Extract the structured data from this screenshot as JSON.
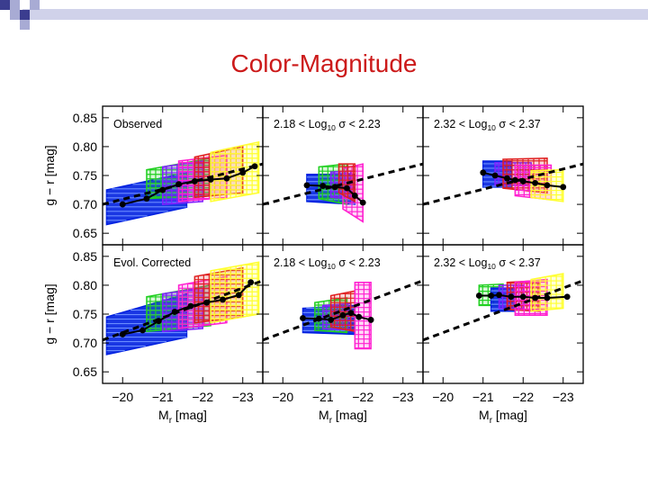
{
  "slide": {
    "title": "Color-Magnitude"
  },
  "colors": {
    "title": "#cc1a1a",
    "accent_square_1": "#3b3d8f",
    "accent_square_2": "#a8abd4",
    "bar_light": "#d0d2ea",
    "ridge_line": "#000000",
    "band_blue": "#0020e0",
    "band_green": "#20d020",
    "band_purple": "#8020ff",
    "band_magenta": "#ff20d0",
    "band_red": "#e02020",
    "band_yellow": "#ffff30"
  },
  "chart_data": {
    "type": "scatter",
    "layout": "2 rows x 3 columns of panels sharing axes",
    "ylabel": "g − r [mag]",
    "xlabel": "M_r [mag]",
    "xlim": [
      -19.5,
      -23.5
    ],
    "ylim": [
      0.63,
      0.87
    ],
    "x_ticks": [
      -20,
      -21,
      -22,
      -23
    ],
    "x_tick_labels": [
      "−20",
      "−21",
      "−22",
      "−23"
    ],
    "y_ticks": [
      0.65,
      0.7,
      0.75,
      0.8,
      0.85
    ],
    "y_tick_labels": [
      "0.65",
      "0.70",
      "0.75",
      "0.80",
      "0.85"
    ],
    "panels": [
      {
        "id": "observed-all",
        "label_parts": [
          "Observed"
        ],
        "row": 0,
        "col": 0,
        "ridge_line": {
          "x": [
            -19.5,
            -23.5
          ],
          "y": [
            0.7,
            0.77
          ]
        },
        "points": {
          "x": [
            -20.0,
            -20.6,
            -21.0,
            -21.4,
            -21.8,
            -22.2,
            -22.6,
            -23.0,
            -23.3
          ],
          "y": [
            0.7,
            0.71,
            0.725,
            0.735,
            0.74,
            0.743,
            0.745,
            0.755,
            0.766
          ]
        },
        "bands": [
          {
            "color": "blue",
            "x": [
              -19.6,
              -21.6
            ],
            "y_low": [
              0.665,
              0.695
            ],
            "y_high": [
              0.725,
              0.755
            ]
          },
          {
            "color": "green",
            "x": [
              -20.6,
              -22.2
            ],
            "y_low": [
              0.71,
              0.715
            ],
            "y_high": [
              0.76,
              0.78
            ]
          },
          {
            "color": "purple",
            "x": [
              -21.0,
              -22.0
            ],
            "y_low": [
              0.7,
              0.705
            ],
            "y_high": [
              0.765,
              0.775
            ]
          },
          {
            "color": "magenta",
            "x": [
              -21.4,
              -22.6
            ],
            "y_low": [
              0.705,
              0.712
            ],
            "y_high": [
              0.775,
              0.785
            ]
          },
          {
            "color": "red",
            "x": [
              -21.8,
              -23.0
            ],
            "y_low": [
              0.712,
              0.72
            ],
            "y_high": [
              0.782,
              0.8
            ]
          },
          {
            "color": "yellow",
            "x": [
              -22.2,
              -23.4
            ],
            "y_low": [
              0.705,
              0.72
            ],
            "y_high": [
              0.79,
              0.808
            ]
          }
        ]
      },
      {
        "id": "observed-sigma-low",
        "label_parts": [
          "2.18 < Log",
          "10",
          " σ < 2.23"
        ],
        "row": 0,
        "col": 1,
        "ridge_line": {
          "x": [
            -19.5,
            -23.5
          ],
          "y": [
            0.7,
            0.77
          ]
        },
        "points": {
          "x": [
            -20.6,
            -21.0,
            -21.3,
            -21.6,
            -21.8,
            -22.0
          ],
          "y": [
            0.733,
            0.732,
            0.73,
            0.728,
            0.715,
            0.703
          ]
        },
        "bands": [
          {
            "color": "blue",
            "x": [
              -20.6,
              -21.8
            ],
            "y_low": [
              0.705,
              0.7
            ],
            "y_high": [
              0.752,
              0.752
            ]
          },
          {
            "color": "green",
            "x": [
              -20.9,
              -21.6
            ],
            "y_low": [
              0.71,
              0.7
            ],
            "y_high": [
              0.765,
              0.77
            ]
          },
          {
            "color": "purple",
            "x": [
              -21.2,
              -21.7
            ],
            "y_low": [
              0.712,
              0.71
            ],
            "y_high": [
              0.756,
              0.758
            ]
          },
          {
            "color": "magenta",
            "x": [
              -21.5,
              -22.0
            ],
            "y_low": [
              0.692,
              0.67
            ],
            "y_high": [
              0.762,
              0.77
            ]
          },
          {
            "color": "red",
            "x": [
              -21.4,
              -21.8
            ],
            "y_low": [
              0.72,
              0.705
            ],
            "y_high": [
              0.77,
              0.77
            ]
          }
        ]
      },
      {
        "id": "observed-sigma-high",
        "label_parts": [
          "2.32 < Log",
          "10",
          " σ < 2.37"
        ],
        "row": 0,
        "col": 2,
        "ridge_line": {
          "x": [
            -19.5,
            -23.5
          ],
          "y": [
            0.7,
            0.77
          ]
        },
        "points": {
          "x": [
            -21.0,
            -21.3,
            -21.6,
            -21.8,
            -22.0,
            -22.3,
            -22.6,
            -23.0
          ],
          "y": [
            0.755,
            0.75,
            0.745,
            0.742,
            0.74,
            0.737,
            0.733,
            0.73
          ]
        },
        "bands": [
          {
            "color": "blue",
            "x": [
              -21.0,
              -21.7
            ],
            "y_low": [
              0.73,
              0.73
            ],
            "y_high": [
              0.775,
              0.775
            ]
          },
          {
            "color": "purple",
            "x": [
              -21.3,
              -22.2
            ],
            "y_low": [
              0.733,
              0.733
            ],
            "y_high": [
              0.772,
              0.772
            ]
          },
          {
            "color": "red",
            "x": [
              -21.5,
              -22.6
            ],
            "y_low": [
              0.728,
              0.72
            ],
            "y_high": [
              0.778,
              0.78
            ]
          },
          {
            "color": "magenta",
            "x": [
              -21.8,
              -22.7
            ],
            "y_low": [
              0.715,
              0.708
            ],
            "y_high": [
              0.768,
              0.768
            ]
          },
          {
            "color": "yellow",
            "x": [
              -22.2,
              -23.0
            ],
            "y_low": [
              0.712,
              0.705
            ],
            "y_high": [
              0.758,
              0.76
            ]
          }
        ]
      },
      {
        "id": "evol-corrected-all",
        "label_parts": [
          "Evol. Corrected"
        ],
        "row": 1,
        "col": 0,
        "ridge_line": {
          "x": [
            -19.5,
            -23.5
          ],
          "y": [
            0.705,
            0.808
          ]
        },
        "points": {
          "x": [
            -20.0,
            -20.5,
            -20.9,
            -21.3,
            -21.7,
            -22.1,
            -22.5,
            -22.9,
            -23.2
          ],
          "y": [
            0.715,
            0.722,
            0.738,
            0.754,
            0.764,
            0.77,
            0.775,
            0.783,
            0.805
          ]
        },
        "bands": [
          {
            "color": "blue",
            "x": [
              -19.6,
              -21.6
            ],
            "y_low": [
              0.68,
              0.71
            ],
            "y_high": [
              0.745,
              0.785
            ]
          },
          {
            "color": "green",
            "x": [
              -20.6,
              -22.2
            ],
            "y_low": [
              0.72,
              0.73
            ],
            "y_high": [
              0.78,
              0.8
            ]
          },
          {
            "color": "purple",
            "x": [
              -21.0,
              -22.0
            ],
            "y_low": [
              0.72,
              0.725
            ],
            "y_high": [
              0.785,
              0.795
            ]
          },
          {
            "color": "magenta",
            "x": [
              -21.4,
              -22.6
            ],
            "y_low": [
              0.725,
              0.735
            ],
            "y_high": [
              0.8,
              0.815
            ]
          },
          {
            "color": "red",
            "x": [
              -21.8,
              -23.0
            ],
            "y_low": [
              0.735,
              0.745
            ],
            "y_high": [
              0.815,
              0.83
            ]
          },
          {
            "color": "yellow",
            "x": [
              -22.2,
              -23.4
            ],
            "y_low": [
              0.735,
              0.75
            ],
            "y_high": [
              0.825,
              0.84
            ]
          }
        ]
      },
      {
        "id": "evol-corrected-sigma-low",
        "label_parts": [
          "2.18 < Log",
          "10",
          " σ < 2.23"
        ],
        "row": 1,
        "col": 1,
        "ridge_line": {
          "x": [
            -19.5,
            -23.5
          ],
          "y": [
            0.705,
            0.808
          ]
        },
        "points": {
          "x": [
            -20.5,
            -20.9,
            -21.2,
            -21.5,
            -21.7,
            -21.9,
            -22.2
          ],
          "y": [
            0.743,
            0.742,
            0.74,
            0.748,
            0.752,
            0.745,
            0.74
          ]
        },
        "bands": [
          {
            "color": "blue",
            "x": [
              -20.5,
              -21.8
            ],
            "y_low": [
              0.718,
              0.715
            ],
            "y_high": [
              0.76,
              0.765
            ]
          },
          {
            "color": "green",
            "x": [
              -20.8,
              -21.6
            ],
            "y_low": [
              0.722,
              0.718
            ],
            "y_high": [
              0.77,
              0.778
            ]
          },
          {
            "color": "purple",
            "x": [
              -21.0,
              -21.7
            ],
            "y_low": [
              0.725,
              0.722
            ],
            "y_high": [
              0.765,
              0.768
            ]
          },
          {
            "color": "red",
            "x": [
              -21.2,
              -21.8
            ],
            "y_low": [
              0.728,
              0.72
            ],
            "y_high": [
              0.782,
              0.79
            ]
          },
          {
            "color": "magenta",
            "x": [
              -21.8,
              -22.2
            ],
            "y_low": [
              0.69,
              0.69
            ],
            "y_high": [
              0.805,
              0.805
            ]
          }
        ]
      },
      {
        "id": "evol-corrected-sigma-high",
        "label_parts": [
          "2.32 < Log",
          "10",
          " σ < 2.37"
        ],
        "row": 1,
        "col": 2,
        "ridge_line": {
          "x": [
            -19.5,
            -23.5
          ],
          "y": [
            0.705,
            0.808
          ]
        },
        "points": {
          "x": [
            -20.9,
            -21.2,
            -21.4,
            -21.7,
            -22.0,
            -22.3,
            -22.6,
            -23.1
          ],
          "y": [
            0.782,
            0.782,
            0.783,
            0.78,
            0.78,
            0.778,
            0.778,
            0.78
          ]
        },
        "bands": [
          {
            "color": "green",
            "x": [
              -20.9,
              -21.5
            ],
            "y_low": [
              0.765,
              0.765
            ],
            "y_high": [
              0.8,
              0.802
            ]
          },
          {
            "color": "blue",
            "x": [
              -21.2,
              -21.8
            ],
            "y_low": [
              0.755,
              0.755
            ],
            "y_high": [
              0.795,
              0.795
            ]
          },
          {
            "color": "purple",
            "x": [
              -21.4,
              -22.0
            ],
            "y_low": [
              0.76,
              0.76
            ],
            "y_high": [
              0.8,
              0.8
            ]
          },
          {
            "color": "red",
            "x": [
              -21.6,
              -22.4
            ],
            "y_low": [
              0.758,
              0.755
            ],
            "y_high": [
              0.805,
              0.808
            ]
          },
          {
            "color": "magenta",
            "x": [
              -21.8,
              -22.6
            ],
            "y_low": [
              0.748,
              0.748
            ],
            "y_high": [
              0.805,
              0.81
            ]
          },
          {
            "color": "yellow",
            "x": [
              -22.2,
              -23.0
            ],
            "y_low": [
              0.755,
              0.76
            ],
            "y_high": [
              0.81,
              0.82
            ]
          }
        ]
      }
    ]
  }
}
